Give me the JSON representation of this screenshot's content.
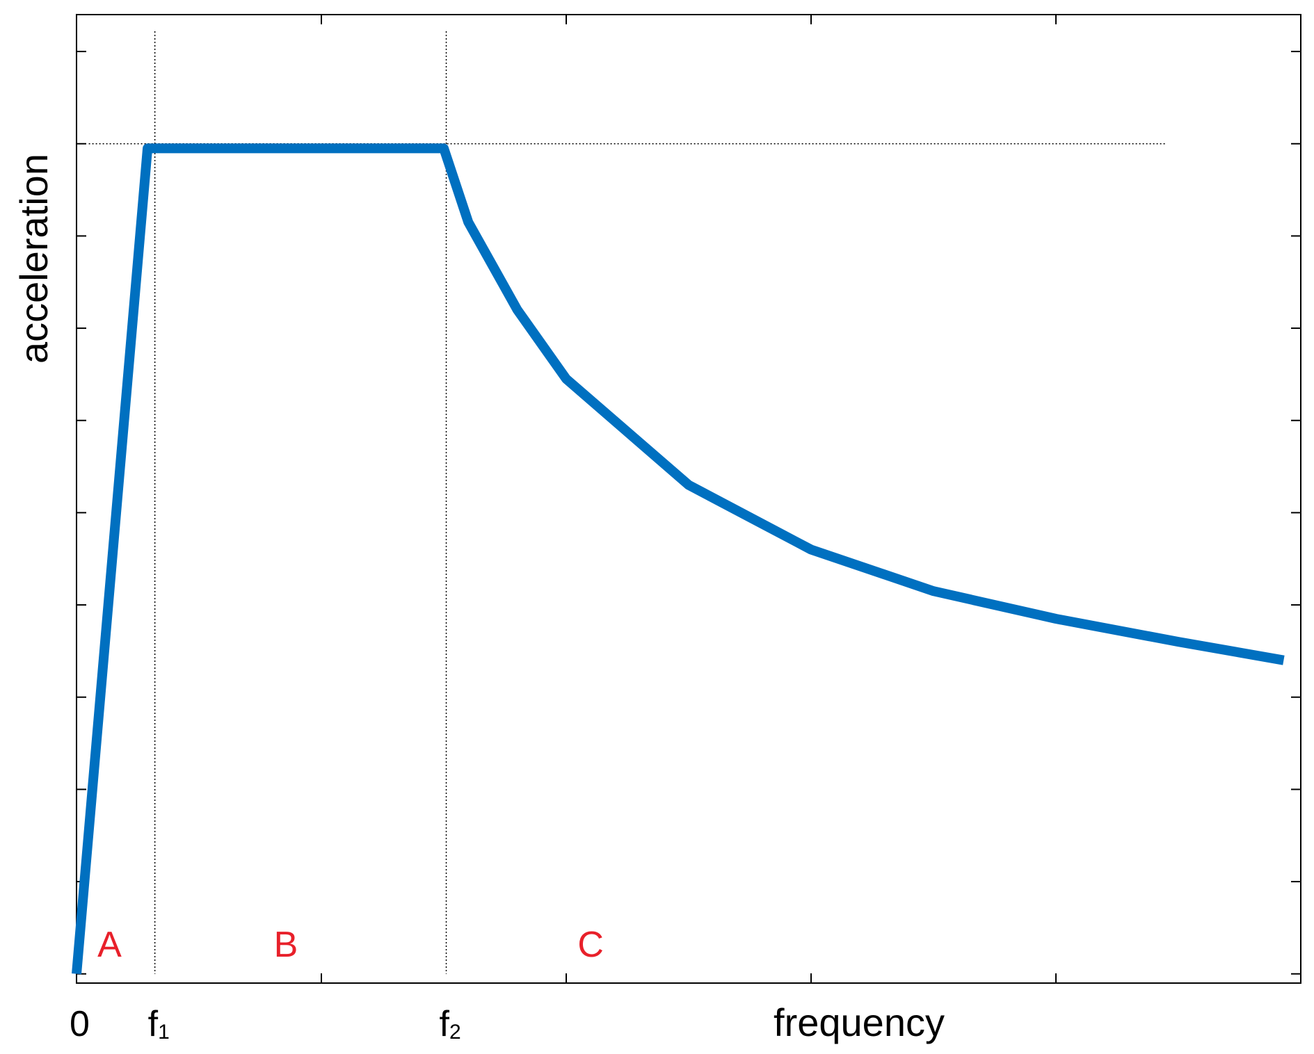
{
  "chart_data": {
    "type": "line",
    "xlabel": "frequency",
    "ylabel": "acceleration",
    "x_tick_labels": [
      {
        "main": "0",
        "sub": ""
      },
      {
        "main": "f",
        "sub": "1"
      },
      {
        "main": "f",
        "sub": "2"
      }
    ],
    "region_labels": [
      "A",
      "B",
      "C"
    ],
    "series": [
      {
        "points": [
          {
            "x": 0.0,
            "y": 0.0
          },
          {
            "x": 0.29,
            "y": 8.95
          },
          {
            "x": 1.5,
            "y": 8.95
          },
          {
            "x": 1.6,
            "y": 8.15
          },
          {
            "x": 1.8,
            "y": 7.2
          },
          {
            "x": 2.0,
            "y": 6.45
          },
          {
            "x": 2.5,
            "y": 5.3
          },
          {
            "x": 3.0,
            "y": 4.6
          },
          {
            "x": 3.5,
            "y": 4.15
          },
          {
            "x": 4.0,
            "y": 3.85
          },
          {
            "x": 4.5,
            "y": 3.6
          },
          {
            "x": 4.93,
            "y": 3.4
          }
        ]
      }
    ],
    "reference_lines": {
      "f1": 0.32,
      "f2": 1.51,
      "plateau": 9.0
    },
    "xlim": [
      0,
      5
    ],
    "ylim": [
      -0.1,
      10.4
    ],
    "x_ticks": [
      0,
      1,
      2,
      3,
      4,
      5
    ],
    "y_ticks": [
      0,
      1,
      2,
      3,
      4,
      5,
      6,
      7,
      8,
      9,
      10
    ],
    "grid": false,
    "legend": false,
    "colors": {
      "line": "#0070c0",
      "region_label": "#e8202a",
      "axis": "#000000"
    }
  }
}
